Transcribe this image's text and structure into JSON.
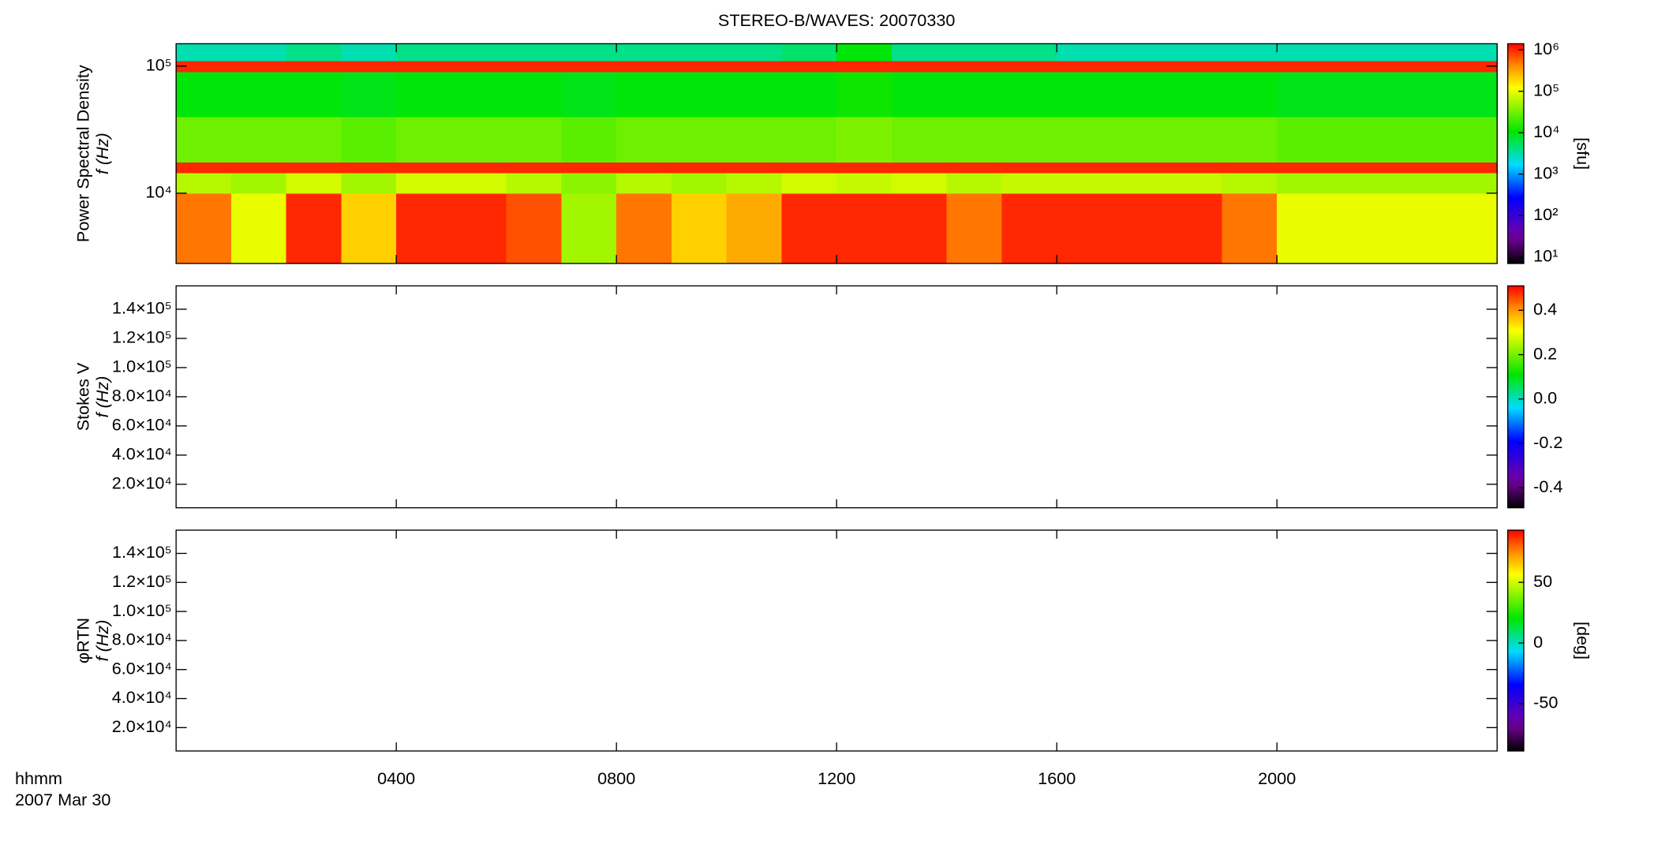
{
  "chart_data": [
    {
      "type": "heatmap",
      "title": "STEREO-B/WAVES: 20070330",
      "ylabel": [
        "Power Spectral Density",
        "f (Hz)"
      ],
      "xlim": [
        0,
        24
      ],
      "xticks": [
        {
          "value": 4,
          "label": "0400"
        },
        {
          "value": 8,
          "label": "0800"
        },
        {
          "value": 12,
          "label": "1200"
        },
        {
          "value": 16,
          "label": "1600"
        },
        {
          "value": 20,
          "label": "2000"
        }
      ],
      "ylim": [
        2800,
        150000
      ],
      "ylog": true,
      "yticks": [
        {
          "value": 10000,
          "label": "10⁴"
        },
        {
          "value": 100000,
          "label": "10⁵"
        }
      ],
      "colorbar": {
        "label": "[sfu]",
        "log": true,
        "colormap": "rainbow",
        "clim": [
          7,
          1400000
        ],
        "ticks": [
          {
            "value": 10,
            "label": "10¹"
          },
          {
            "value": 100,
            "label": "10²"
          },
          {
            "value": 1000,
            "label": "10³"
          },
          {
            "value": 10000,
            "label": "10⁴"
          },
          {
            "value": 100000,
            "label": "10⁵"
          },
          {
            "value": 1000000,
            "label": "10⁶"
          }
        ]
      },
      "time_edges": [
        0,
        1,
        2,
        3,
        4,
        5,
        6,
        7,
        8,
        9,
        10,
        11,
        12,
        13,
        14,
        15,
        16,
        17,
        18,
        19,
        20,
        21,
        22,
        23,
        24
      ],
      "freq_edges": [
        2800,
        10000,
        14500,
        17500,
        40000,
        90000,
        110000,
        150000
      ],
      "values": [
        [
          500000,
          100000,
          1000000,
          200000,
          1000000,
          1000000,
          700000,
          50000,
          500000,
          200000,
          300000,
          1000000,
          1000000,
          1000000,
          500000,
          1000000,
          1000000,
          1000000,
          1000000,
          500000,
          100000,
          100000,
          100000,
          100000
        ],
        [
          60000,
          50000,
          80000,
          50000,
          80000,
          80000,
          60000,
          40000,
          60000,
          50000,
          60000,
          80000,
          70000,
          80000,
          60000,
          70000,
          70000,
          70000,
          70000,
          60000,
          50000,
          50000,
          50000,
          50000
        ],
        [
          1000000,
          1000000,
          1000000,
          1000000,
          1000000,
          1000000,
          1000000,
          1000000,
          1000000,
          1000000,
          1000000,
          1000000,
          1000000,
          1000000,
          1000000,
          1000000,
          1000000,
          1000000,
          1000000,
          1000000,
          1000000,
          1000000,
          1000000,
          1000000
        ],
        [
          30000,
          30000,
          30000,
          25000,
          30000,
          30000,
          30000,
          25000,
          30000,
          30000,
          30000,
          30000,
          35000,
          30000,
          30000,
          30000,
          30000,
          30000,
          30000,
          30000,
          25000,
          25000,
          25000,
          25000
        ],
        [
          10000,
          10000,
          10000,
          9000,
          10000,
          10000,
          10000,
          9000,
          10000,
          10000,
          10000,
          10000,
          12000,
          10000,
          10000,
          10000,
          10000,
          10000,
          10000,
          10000,
          9000,
          9000,
          9000,
          9000
        ],
        [
          1000000,
          1000000,
          1000000,
          1000000,
          1000000,
          1000000,
          1000000,
          1000000,
          1000000,
          1000000,
          1000000,
          1000000,
          1000000,
          1000000,
          1000000,
          1000000,
          1000000,
          1000000,
          1000000,
          1000000,
          1000000,
          1000000,
          1000000,
          1000000
        ],
        [
          3000,
          3000,
          4000,
          3000,
          4000,
          4000,
          4000,
          4000,
          4000,
          4000,
          4000,
          5000,
          10000,
          4000,
          4000,
          4000,
          3000,
          3000,
          3000,
          3000,
          3000,
          3000,
          3000,
          3000
        ]
      ]
    },
    {
      "type": "heatmap",
      "ylabel": [
        "Stokes V",
        "f (Hz)"
      ],
      "xlim": [
        0,
        24
      ],
      "xticks": [
        {
          "value": 4,
          "label": "0400"
        },
        {
          "value": 8,
          "label": "0800"
        },
        {
          "value": 12,
          "label": "1200"
        },
        {
          "value": 16,
          "label": "1600"
        },
        {
          "value": 20,
          "label": "2000"
        }
      ],
      "ylim": [
        3900,
        156000
      ],
      "yticks": [
        {
          "value": 20000,
          "label": "2.0×10⁴"
        },
        {
          "value": 40000,
          "label": "4.0×10⁴"
        },
        {
          "value": 60000,
          "label": "6.0×10⁴"
        },
        {
          "value": 80000,
          "label": "8.0×10⁴"
        },
        {
          "value": 100000,
          "label": "1.0×10⁵"
        },
        {
          "value": 120000,
          "label": "1.2×10⁵"
        },
        {
          "value": 140000,
          "label": "1.4×10⁵"
        }
      ],
      "colorbar": {
        "colormap": "rainbow",
        "clim": [
          -0.49,
          0.51
        ],
        "ticks": [
          0.4,
          0.2,
          {
            "value": 0,
            "label": "0.0"
          },
          -0.2,
          -0.4
        ]
      }
    },
    {
      "type": "heatmap",
      "ylabel": [
        "φRTN",
        "f (Hz)"
      ],
      "xlabel": "hhmm",
      "date": "2007 Mar 30",
      "xlim": [
        0,
        24
      ],
      "xticks": [
        {
          "value": 4,
          "label": "0400"
        },
        {
          "value": 8,
          "label": "0800"
        },
        {
          "value": 12,
          "label": "1200"
        },
        {
          "value": 16,
          "label": "1600"
        },
        {
          "value": 20,
          "label": "2000"
        }
      ],
      "ylim": [
        3900,
        156000
      ],
      "yticks": [
        {
          "value": 20000,
          "label": "2.0×10⁴"
        },
        {
          "value": 40000,
          "label": "4.0×10⁴"
        },
        {
          "value": 60000,
          "label": "6.0×10⁴"
        },
        {
          "value": 80000,
          "label": "8.0×10⁴"
        },
        {
          "value": 100000,
          "label": "1.0×10⁵"
        },
        {
          "value": 120000,
          "label": "1.2×10⁵"
        },
        {
          "value": 140000,
          "label": "1.4×10⁵"
        }
      ],
      "colorbar": {
        "label": "[deg]",
        "colormap": "rainbow",
        "clim": [
          -89,
          93
        ],
        "ticks": [
          50,
          0,
          -50
        ]
      }
    }
  ]
}
